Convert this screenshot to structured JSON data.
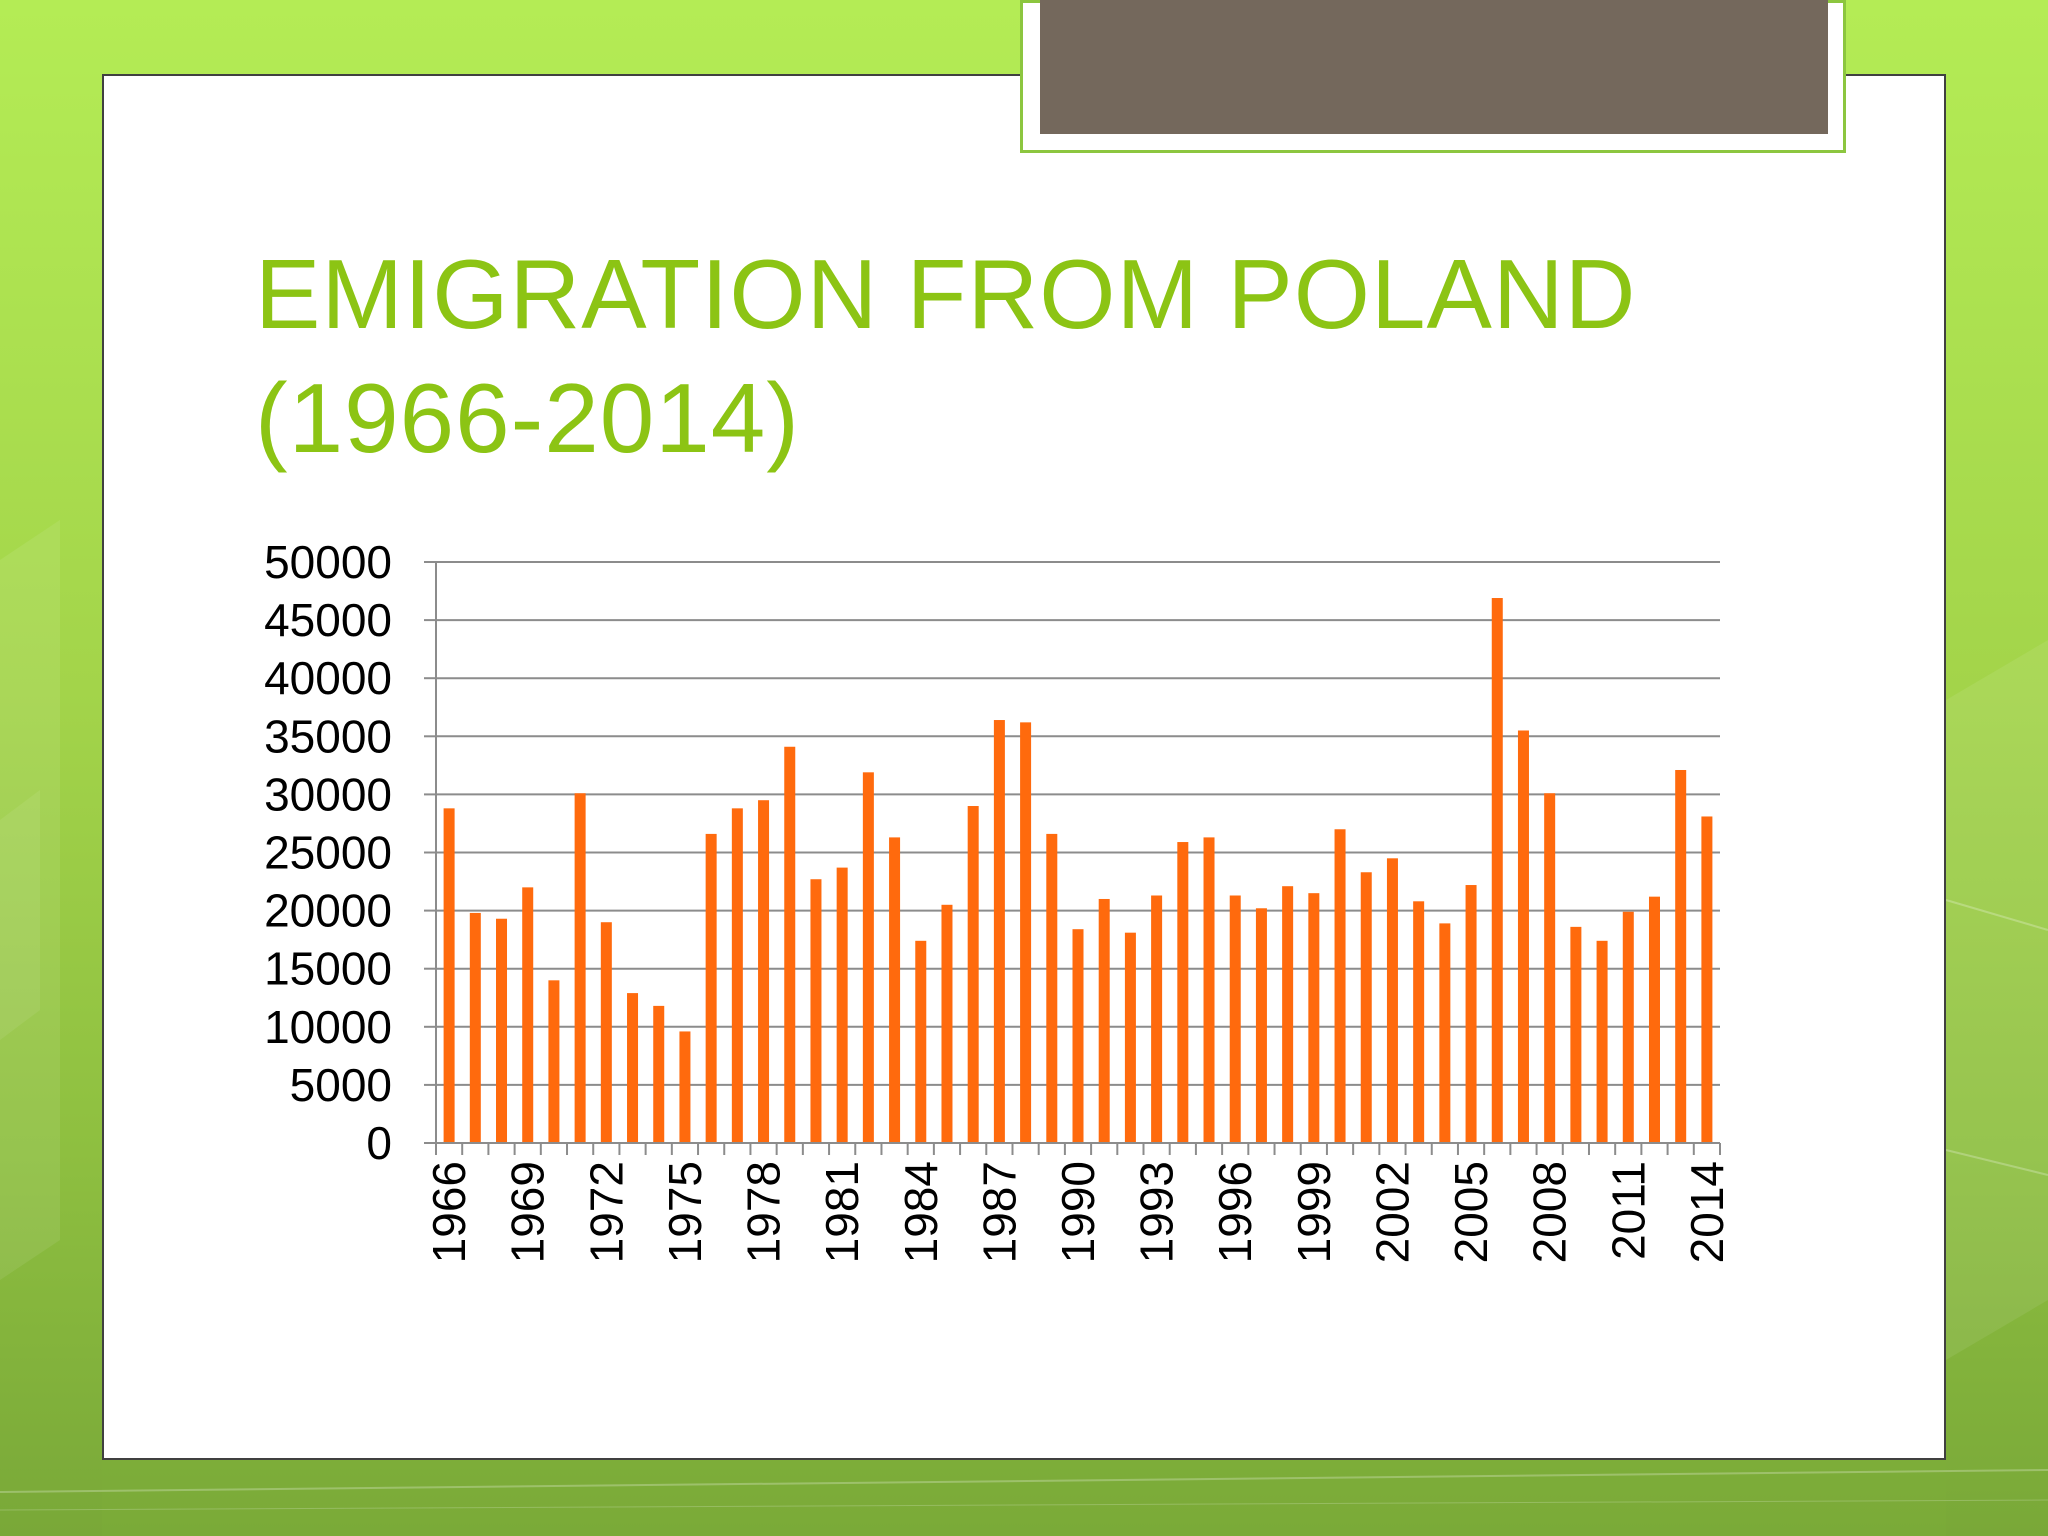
{
  "slide": {
    "title": "EMIGRATION FROM POLAND (1966-2014)",
    "colors": {
      "title": "#8cc414",
      "bar": "#ff6a0d",
      "tab_fill": "#74685c",
      "tab_border": "#8cc63f",
      "background": "#b4ec55"
    }
  },
  "chart_data": {
    "type": "bar",
    "title": "",
    "xlabel": "",
    "ylabel": "",
    "ylim": [
      0,
      50000
    ],
    "yticks": [
      0,
      5000,
      10000,
      15000,
      20000,
      25000,
      30000,
      35000,
      40000,
      45000,
      50000
    ],
    "grid": true,
    "legend": "none",
    "categories": [
      1966,
      1967,
      1968,
      1969,
      1970,
      1971,
      1972,
      1973,
      1974,
      1975,
      1976,
      1977,
      1978,
      1979,
      1980,
      1981,
      1982,
      1983,
      1984,
      1985,
      1986,
      1987,
      1988,
      1989,
      1990,
      1991,
      1992,
      1993,
      1994,
      1995,
      1996,
      1997,
      1998,
      1999,
      2000,
      2001,
      2002,
      2003,
      2004,
      2005,
      2006,
      2007,
      2008,
      2009,
      2010,
      2011,
      2012,
      2013,
      2014
    ],
    "xtick_labels": [
      "1966",
      "1969",
      "1972",
      "1975",
      "1978",
      "1981",
      "1984",
      "1987",
      "1990",
      "1993",
      "1996",
      "1999",
      "2002",
      "2005",
      "2008",
      "2011",
      "2014"
    ],
    "values": [
      28800,
      19800,
      19300,
      22000,
      14000,
      30100,
      19000,
      12900,
      11800,
      9600,
      26600,
      28800,
      29500,
      34100,
      22700,
      23700,
      31900,
      26300,
      17400,
      20500,
      29000,
      36400,
      36200,
      26600,
      18400,
      21000,
      18100,
      21300,
      25900,
      26300,
      21300,
      20200,
      22100,
      21500,
      27000,
      23300,
      24500,
      20800,
      18900,
      22200,
      46900,
      35500,
      30100,
      18600,
      17400,
      19900,
      21200,
      32100,
      28100
    ]
  }
}
